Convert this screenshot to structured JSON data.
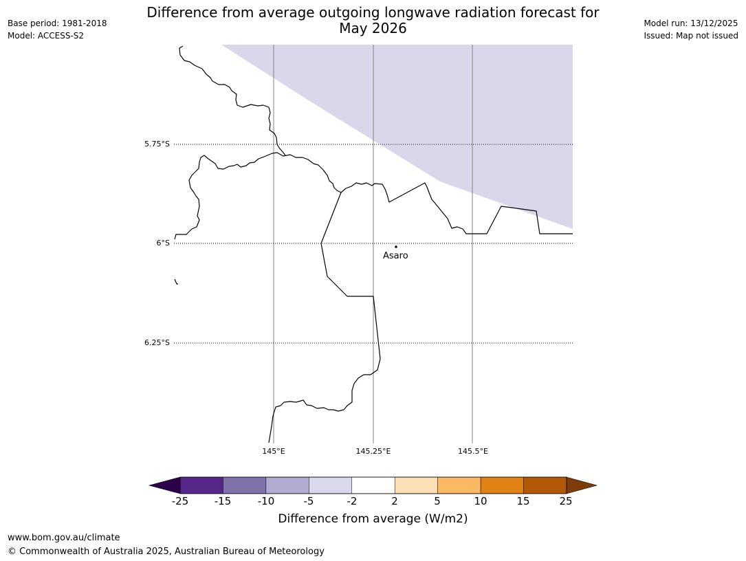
{
  "title": {
    "line1": "Difference from average outgoing longwave radiation forecast for",
    "line2": "May 2026"
  },
  "meta_left": {
    "base_period": "Base period: 1981-2018",
    "model": "Model: ACCESS-S2"
  },
  "meta_right": {
    "model_run": "Model run: 13/12/2025",
    "issued": "Issued: Map not issued"
  },
  "map": {
    "latitudes": [
      "5.75°S",
      "6°S",
      "6.25°S"
    ],
    "longitudes": [
      "145°E",
      "145.25°E",
      "145.5°E"
    ],
    "town": "Asaro",
    "anomaly_fill_color": "#d8d8ea",
    "anomaly_category": "-5 to -2"
  },
  "colorbar": {
    "ticks": [
      "-25",
      "-15",
      "-10",
      "-5",
      "-2",
      "2",
      "5",
      "10",
      "15",
      "25"
    ],
    "colors": {
      "under": "#2d004b",
      "bins": [
        "#542788",
        "#8073ac",
        "#b2abd2",
        "#d8daeb",
        "#ffffff",
        "#fee0b6",
        "#fdb863",
        "#e08214",
        "#b35806"
      ],
      "over": "#7f3b08"
    },
    "title": "Difference from average (W/m2)"
  },
  "footer": {
    "url": "www.bom.gov.au/climate",
    "copyright": "© Commonwealth of Australia 2025, Australian Bureau of Meteorology"
  }
}
